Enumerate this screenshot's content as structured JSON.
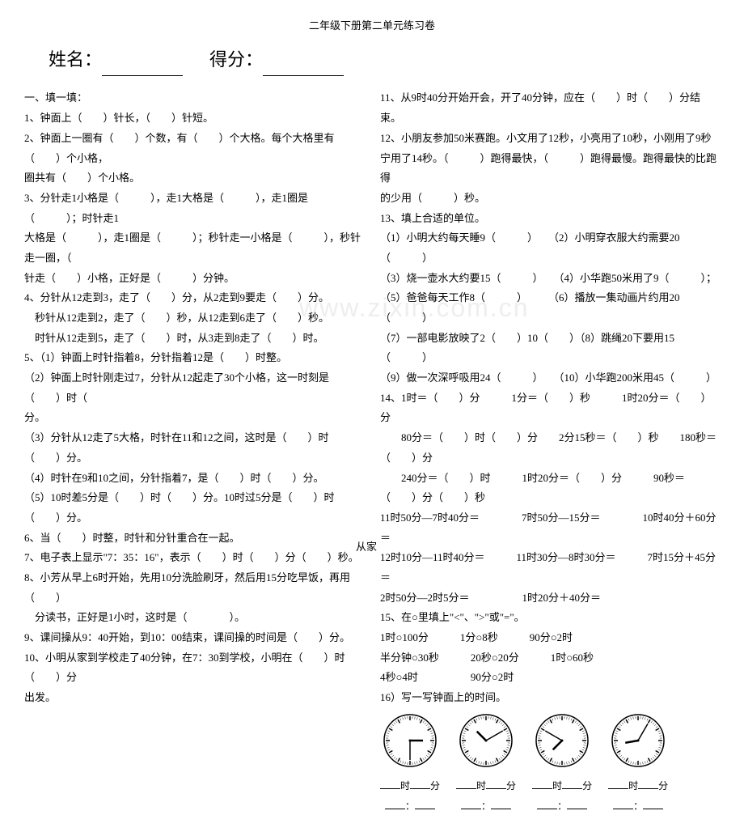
{
  "title": "二年级下册第二单元练习卷",
  "header": {
    "name_label": "姓名：",
    "score_label": "得分："
  },
  "left": {
    "section1": "一、填一填：",
    "q1": "1、钟面上（　　）针长，（　　）针短。",
    "q2a": "2、钟面上一圈有（　　）个数，有（　　）个大格。每个大格里有（　　）个小格，",
    "q2b": "圈共有（　　）个小格。",
    "q3a": "3、分针走1小格是（　　　），走1大格是（　　　），走1圈是（　　　）；时针走1",
    "q3b": "大格是（　　　），走1圈是（　　　）；秒针走一小格是（　　　），秒针走一圈，（",
    "q3c": "针走（　　）小格，正好是（　　　）分钟。",
    "q4a": "4、分针从12走到3，走了（　　）分，从2走到9要走（　　）分。",
    "q4b": "　秒针从12走到2，走了（　　）秒，从12走到6走了（　　）秒。",
    "q4c": "　时针从12走到5，走了（　　）时，从3走到8走了（　　）时。",
    "q5a": "5、（1）钟面上时针指着8，分针指着12是（　　）时整。",
    "q5b": "（2）钟面上时针刚走过7，分针从12起走了30个小格，这一时刻是（　　）时（　　",
    "q5c": "分。",
    "q5d": "（3）分针从12走了5大格，时针在11和12之间，这时是（　　）时（　　）分。",
    "q5e": "（4）时针在9和10之间，分针指着7，是（　　）时（　　）分。",
    "q5f": "（5）10时差5分是（　　）时（　　）分。10时过5分是（　　）时（　　）分。",
    "q6": "6、当（　　）时整，时针和分针重合在一起。",
    "q7": "7、电子表上显示\"7：35：16\"，表示（　　）时（　　）分（　　）秒。",
    "q8a": "8、小芳从早上6时开始，先用10分洗脸刷牙，然后用15分吃早饭，再用（　　）",
    "q8b": "　分读书，正好是1小时，这时是（　　　　）。",
    "q9": "9、课间操从9：40开始，到10：00结束，课间操的时间是（　　）分。",
    "q10a": "10、小明从家到学校走了40分钟，在7：30到学校，小明在（　　）时（　　）分",
    "q10b": "出发。"
  },
  "right": {
    "q11": "11、从9时40分开始开会，开了40分钟，应在（　　）时（　　）分结束。",
    "q12a": "12、小朋友参加50米赛跑。小文用了12秒，小亮用了10秒，小刚用了9秒",
    "q12b": "宁用了14秒。（　　　）跑得最快，（　　　）跑得最慢。跑得最快的比跑得",
    "q12c": "的少用（　　　）秒。",
    "q13": "13、填上合适的单位。",
    "q13_1": "（1）小明大约每天睡9（　　　）　　（2）小明穿衣服大约需要20（　　　）",
    "q13_3": "（3）烧一壶水大约要15（　　　）　　（4）小华跑50米用了9（　　　）；",
    "q13_5": "（5）爸爸每天工作8（　　　）　　　（6）播放一集动画片约用20（　　　）",
    "q13_7": "（7）一部电影放映了2（　　）10（　　）（8）跳绳20下要用15（　　　）",
    "q13_9": "（9）做一次深呼吸用24（　　　）　　（10）小华跑200米用45（　　　）",
    "q14a": "14、1时＝（　　）分　　　1分＝（　　）秒　　　1时20分＝（　　）分",
    "q14b": "　　80分＝（　　）时（　　）分　　2分15秒＝（　　）秒　　180秒＝（　　）分",
    "q14c": "　　240分＝（　　）时　　　1时20分＝（　　）分　　　90秒＝（　　）分（　　）秒",
    "q14d": "11时50分—7时40分＝　　　　7时50分—15分＝　　　　10时40分＋60分＝",
    "q14e": "12时10分—11时40分＝　　　11时30分—8时30分＝　　　7时15分＋45分＝",
    "q14f": "2时50分—2时5分＝　　　　　1时20分＋40分＝",
    "q15": "15、在○里填上\"<\"、\">\"或\"=\"。",
    "q15a": "1时○100分　　　1分○8秒　　　90分○2时",
    "q15b": "半分钟○30秒　　　20秒○20分　　　1时○60秒",
    "q15c": "4秒○4时　　　　　90分○2时",
    "q16": "16）写一写钟面上的时间。",
    "clock_label_a": "时",
    "clock_label_b": "分",
    "fromhome": "从家"
  },
  "clocks": [
    {
      "hour_angle": 90,
      "minute_angle": 180
    },
    {
      "hour_angle": 315,
      "minute_angle": 60
    },
    {
      "hour_angle": 225,
      "minute_angle": 300
    },
    {
      "hour_angle": 260,
      "minute_angle": 30
    }
  ],
  "colors": {
    "text": "#000000",
    "bg": "#ffffff",
    "watermark": "#eeeeee"
  }
}
